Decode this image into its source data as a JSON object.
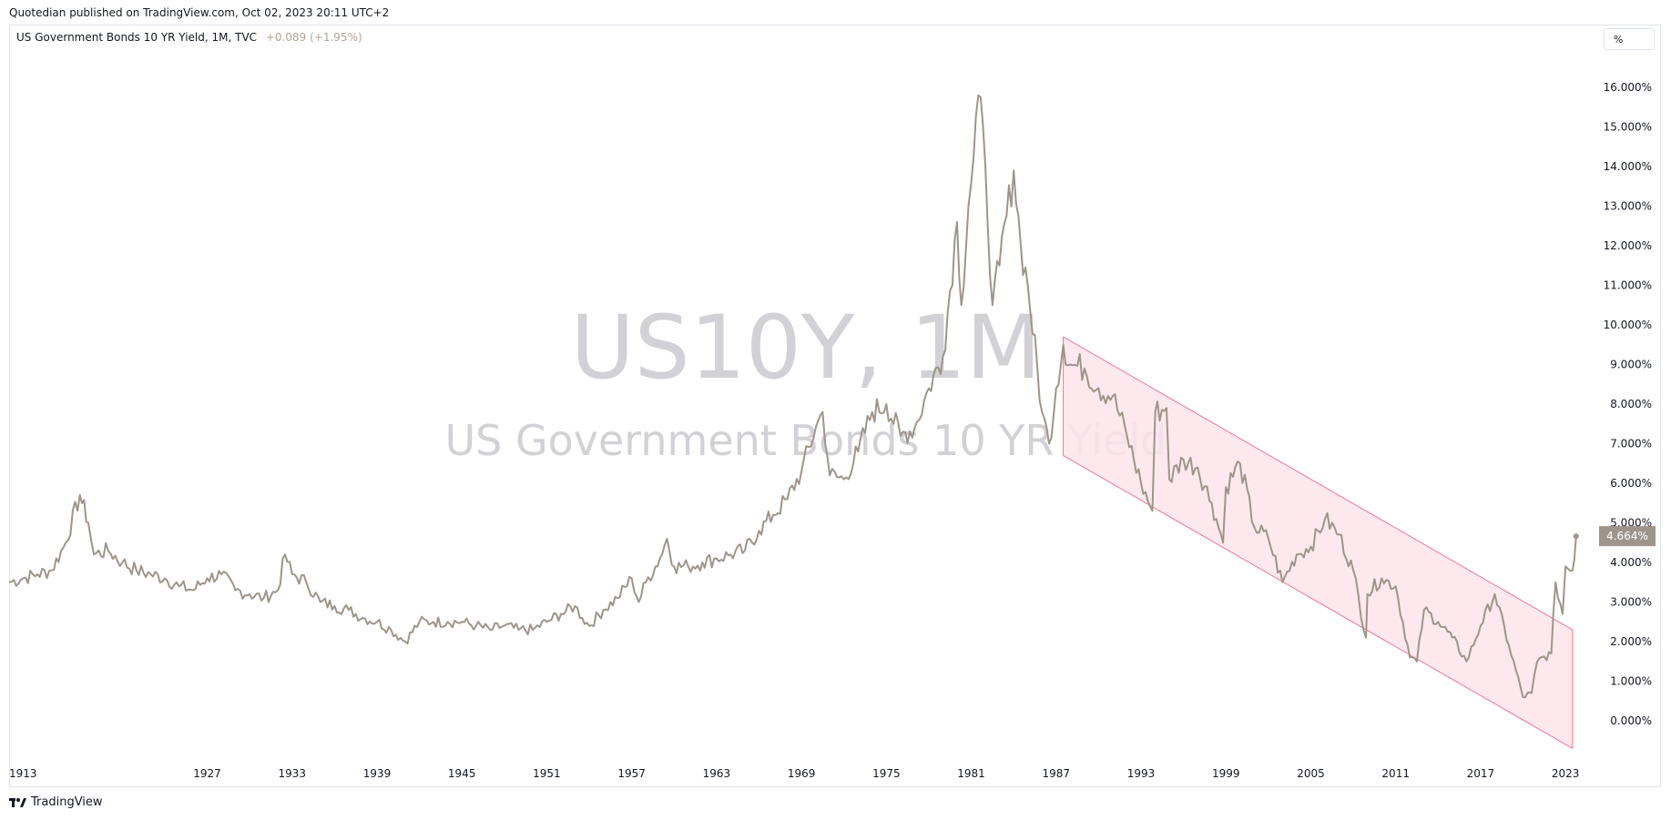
{
  "header": {
    "published": "Quotedian published on TradingView.com, Oct 02, 2023 20:11 UTC+2"
  },
  "legend": {
    "title": "US Government Bonds 10 YR Yield, 1M, TVC",
    "change": "+0.089",
    "change_pct": "(+1.95%)"
  },
  "price_scale": {
    "unit": "%",
    "last_value_label": "4.664%"
  },
  "watermark": {
    "symbol": "US10Y, 1M",
    "description": "US Government Bonds 10 YR Yield"
  },
  "footer": {
    "brand": "TradingView"
  },
  "colors": {
    "line": "#9e958a",
    "channel_line": "#f07a96",
    "channel_fill": "#fbe4ea",
    "watermark": "#d1d1d6",
    "last_label_bg": "#9e958a"
  },
  "chart_data": {
    "type": "line",
    "title": "US Government Bonds 10 YR Yield",
    "xlabel": "",
    "ylabel": "",
    "xlim": [
      1913,
      2025.5
    ],
    "ylim": [
      -0.7,
      17.0
    ],
    "grid": false,
    "x_ticks": [
      "1913",
      "1927",
      "1933",
      "1939",
      "1945",
      "1951",
      "1957",
      "1963",
      "1969",
      "1975",
      "1981",
      "1987",
      "1993",
      "1999",
      "2005",
      "2011",
      "2017",
      "2023"
    ],
    "y_ticks": [
      "0.000%",
      "1.000%",
      "2.000%",
      "3.000%",
      "4.000%",
      "5.000%",
      "6.000%",
      "7.000%",
      "8.000%",
      "9.000%",
      "10.000%",
      "11.000%",
      "12.000%",
      "13.000%",
      "14.000%",
      "15.000%",
      "16.000%"
    ],
    "series": [
      {
        "x": [
          1913,
          1914,
          1915,
          1916,
          1917,
          1918,
          1918.6,
          1919,
          1920,
          1921,
          1922,
          1923,
          1924,
          1925,
          1926,
          1927,
          1928,
          1929,
          1930,
          1931,
          1932,
          1932.5,
          1933,
          1934,
          1935,
          1936,
          1937,
          1938,
          1939,
          1940,
          1941,
          1942,
          1943,
          1944,
          1945,
          1946,
          1947,
          1948,
          1949,
          1950,
          1951,
          1952,
          1953,
          1953.5,
          1954,
          1955,
          1956,
          1957,
          1957.5,
          1958,
          1959,
          1959.5,
          1960,
          1961,
          1962,
          1963,
          1964,
          1965,
          1966,
          1967,
          1968,
          1969,
          1970,
          1970.5,
          1971,
          1972,
          1973,
          1974,
          1975,
          1976,
          1977,
          1978,
          1979,
          1980,
          1980.3,
          1980.8,
          1981,
          1981.5,
          1982,
          1982.5,
          1983,
          1984,
          1984.5,
          1985,
          1986,
          1986.5,
          1987,
          1987.5,
          1988,
          1989,
          1990,
          1991,
          1992,
          1993,
          1993.8,
          1994,
          1994.8,
          1995,
          1996,
          1997,
          1998,
          1998.8,
          1999,
          2000,
          2001,
          2002,
          2003,
          2004,
          2005,
          2006,
          2007,
          2008,
          2008.9,
          2009,
          2010,
          2011,
          2012,
          2012.5,
          2013,
          2014,
          2015,
          2016,
          2017,
          2018,
          2019,
          2020,
          2020.6,
          2021,
          2022,
          2022.3,
          2022.8,
          2023,
          2023.5,
          2023.75
        ],
        "y": [
          3.5,
          3.6,
          3.7,
          3.8,
          4.5,
          5.7,
          5.0,
          4.2,
          4.3,
          4.0,
          3.8,
          3.7,
          3.6,
          3.4,
          3.3,
          3.6,
          3.7,
          3.3,
          3.2,
          3.1,
          3.3,
          4.2,
          3.7,
          3.5,
          3.0,
          2.9,
          2.8,
          2.6,
          2.5,
          2.3,
          2.0,
          2.5,
          2.5,
          2.5,
          2.5,
          2.4,
          2.3,
          2.4,
          2.3,
          2.3,
          2.5,
          2.7,
          2.9,
          2.6,
          2.4,
          2.8,
          3.1,
          3.6,
          3.0,
          3.5,
          4.1,
          4.6,
          3.9,
          3.9,
          4.0,
          4.1,
          4.2,
          4.3,
          4.8,
          5.2,
          5.6,
          6.3,
          7.4,
          7.8,
          6.2,
          6.1,
          6.8,
          7.8,
          8.0,
          7.2,
          7.4,
          8.4,
          9.2,
          12.6,
          10.5,
          13.0,
          13.6,
          15.8,
          14.0,
          10.5,
          11.5,
          13.9,
          12.0,
          11.0,
          7.8,
          7.0,
          8.4,
          9.5,
          9.0,
          8.9,
          8.4,
          8.2,
          7.2,
          6.0,
          5.3,
          7.8,
          7.9,
          6.1,
          6.6,
          6.4,
          5.5,
          4.5,
          5.9,
          6.5,
          4.9,
          4.6,
          3.5,
          4.2,
          4.4,
          5.1,
          4.7,
          3.8,
          2.1,
          3.2,
          3.6,
          3.4,
          1.6,
          1.5,
          2.8,
          2.5,
          2.1,
          1.5,
          2.4,
          3.2,
          1.9,
          0.6,
          0.7,
          1.5,
          1.7,
          3.5,
          2.7,
          3.9,
          3.8,
          4.664
        ]
      }
    ],
    "channel": {
      "upper": [
        [
          1987.5,
          9.7
        ],
        [
          2023.5,
          2.3
        ]
      ],
      "lower": [
        [
          1987.5,
          6.7
        ],
        [
          2023.5,
          -0.7
        ]
      ]
    }
  }
}
